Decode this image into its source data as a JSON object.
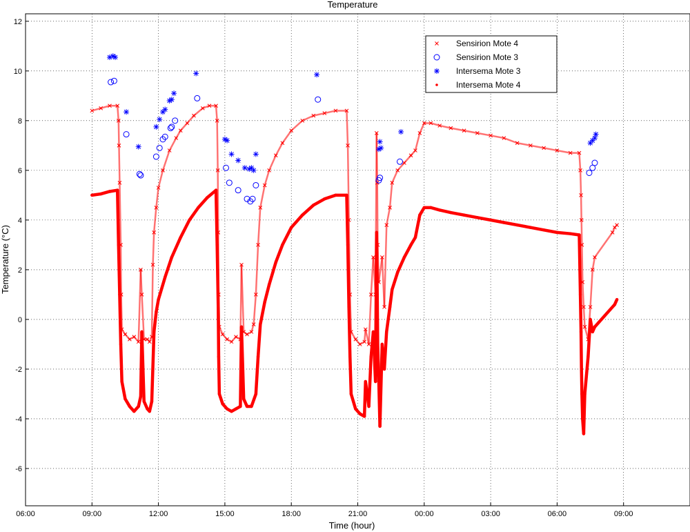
{
  "chart_data": {
    "type": "scatter",
    "title": "Temperature",
    "xlabel": "Time (hour)",
    "ylabel": "Temperature (°C)",
    "xlim": [
      6,
      36
    ],
    "ylim": [
      -7.5,
      12.3
    ],
    "x_unit": "hour",
    "x_ticks": [
      {
        "x": 6,
        "label": "06:00"
      },
      {
        "x": 9,
        "label": "09:00"
      },
      {
        "x": 12,
        "label": "12:00"
      },
      {
        "x": 15,
        "label": "15:00"
      },
      {
        "x": 18,
        "label": "18:00"
      },
      {
        "x": 21,
        "label": "21:00"
      },
      {
        "x": 24,
        "label": "00:00"
      },
      {
        "x": 27,
        "label": "03:00"
      },
      {
        "x": 30,
        "label": "06:00"
      },
      {
        "x": 33,
        "label": "09:00"
      }
    ],
    "y_ticks": [
      {
        "y": 12,
        "label": "12"
      },
      {
        "y": 10,
        "label": "10"
      },
      {
        "y": 8,
        "label": "8"
      },
      {
        "y": 6,
        "label": "6"
      },
      {
        "y": 4,
        "label": "4"
      },
      {
        "y": 2,
        "label": "2"
      },
      {
        "y": 0,
        "label": "0"
      },
      {
        "y": -2,
        "label": "-2"
      },
      {
        "y": -4,
        "label": "-4"
      },
      {
        "y": -6,
        "label": "-6"
      }
    ],
    "grid": true,
    "legend_position": "top-right",
    "series": [
      {
        "name": "Sensirion Mote 4",
        "marker": "x",
        "color": "#ff0000",
        "points": [
          [
            9.0,
            8.4
          ],
          [
            9.4,
            8.5
          ],
          [
            9.8,
            8.6
          ],
          [
            10.15,
            8.6
          ],
          [
            10.2,
            8.0
          ],
          [
            10.22,
            7.0
          ],
          [
            10.25,
            5.5
          ],
          [
            10.3,
            3.0
          ],
          [
            10.32,
            1.0
          ],
          [
            10.35,
            -0.4
          ],
          [
            10.5,
            -0.6
          ],
          [
            10.7,
            -0.8
          ],
          [
            10.9,
            -0.7
          ],
          [
            11.1,
            -0.9
          ],
          [
            11.2,
            2.0
          ],
          [
            11.25,
            1.0
          ],
          [
            11.35,
            -0.8
          ],
          [
            11.5,
            -0.8
          ],
          [
            11.6,
            -0.9
          ],
          [
            11.7,
            -0.7
          ],
          [
            11.75,
            2.2
          ],
          [
            11.8,
            3.5
          ],
          [
            11.9,
            4.5
          ],
          [
            12.0,
            5.3
          ],
          [
            12.2,
            6.0
          ],
          [
            12.5,
            6.8
          ],
          [
            12.8,
            7.3
          ],
          [
            13.0,
            7.6
          ],
          [
            13.3,
            7.9
          ],
          [
            13.6,
            8.2
          ],
          [
            14.0,
            8.5
          ],
          [
            14.3,
            8.6
          ],
          [
            14.6,
            8.6
          ],
          [
            14.65,
            8.0
          ],
          [
            14.68,
            6.0
          ],
          [
            14.7,
            3.5
          ],
          [
            14.72,
            1.0
          ],
          [
            14.75,
            -0.3
          ],
          [
            14.9,
            -0.6
          ],
          [
            15.1,
            -0.8
          ],
          [
            15.3,
            -0.9
          ],
          [
            15.5,
            -0.7
          ],
          [
            15.7,
            -0.8
          ],
          [
            15.75,
            2.2
          ],
          [
            15.85,
            -0.5
          ],
          [
            16.0,
            -0.6
          ],
          [
            16.2,
            -0.5
          ],
          [
            16.3,
            -0.2
          ],
          [
            16.4,
            1.0
          ],
          [
            16.5,
            3.0
          ],
          [
            16.6,
            4.5
          ],
          [
            16.8,
            5.4
          ],
          [
            17.0,
            6.0
          ],
          [
            17.3,
            6.6
          ],
          [
            17.6,
            7.1
          ],
          [
            18.0,
            7.6
          ],
          [
            18.5,
            8.0
          ],
          [
            19.0,
            8.2
          ],
          [
            19.5,
            8.3
          ],
          [
            20.0,
            8.4
          ],
          [
            20.5,
            8.4
          ],
          [
            20.55,
            7.0
          ],
          [
            20.6,
            4.0
          ],
          [
            20.65,
            1.0
          ],
          [
            20.7,
            -0.5
          ],
          [
            20.9,
            -0.8
          ],
          [
            21.1,
            -1.0
          ],
          [
            21.3,
            -0.9
          ],
          [
            21.35,
            -0.4
          ],
          [
            21.5,
            -1.0
          ],
          [
            21.6,
            1.0
          ],
          [
            21.7,
            2.5
          ],
          [
            21.8,
            1.0
          ],
          [
            21.85,
            7.5
          ],
          [
            21.88,
            5.5
          ],
          [
            21.9,
            3.0
          ],
          [
            21.95,
            1.5
          ],
          [
            22.1,
            2.5
          ],
          [
            22.2,
            0.5
          ],
          [
            22.3,
            3.8
          ],
          [
            22.45,
            4.5
          ],
          [
            22.55,
            5.5
          ],
          [
            22.8,
            6.0
          ],
          [
            23.1,
            6.3
          ],
          [
            23.4,
            6.6
          ],
          [
            23.6,
            6.8
          ],
          [
            23.8,
            7.5
          ],
          [
            24.0,
            7.9
          ],
          [
            24.3,
            7.9
          ],
          [
            24.7,
            7.8
          ],
          [
            25.2,
            7.7
          ],
          [
            25.8,
            7.6
          ],
          [
            26.4,
            7.5
          ],
          [
            27.0,
            7.4
          ],
          [
            27.6,
            7.3
          ],
          [
            28.2,
            7.1
          ],
          [
            28.8,
            7.0
          ],
          [
            29.4,
            6.9
          ],
          [
            30.0,
            6.8
          ],
          [
            30.6,
            6.7
          ],
          [
            31.0,
            6.7
          ],
          [
            31.05,
            6.0
          ],
          [
            31.08,
            5.0
          ],
          [
            31.1,
            4.0
          ],
          [
            31.12,
            3.0
          ],
          [
            31.15,
            1.5
          ],
          [
            31.2,
            0.5
          ],
          [
            31.25,
            -0.3
          ],
          [
            31.4,
            -0.8
          ],
          [
            31.5,
            0.5
          ],
          [
            31.6,
            2.0
          ],
          [
            31.7,
            2.5
          ],
          [
            32.5,
            3.5
          ],
          [
            32.6,
            3.7
          ],
          [
            32.7,
            3.8
          ]
        ]
      },
      {
        "name": "Sensirion Mote 3",
        "marker": "o",
        "color": "#0000ff",
        "points": [
          [
            9.85,
            9.55
          ],
          [
            10.0,
            9.6
          ],
          [
            10.55,
            7.45
          ],
          [
            11.15,
            5.85
          ],
          [
            11.2,
            5.8
          ],
          [
            11.9,
            6.55
          ],
          [
            12.05,
            6.9
          ],
          [
            12.2,
            7.25
          ],
          [
            12.3,
            7.35
          ],
          [
            12.55,
            7.7
          ],
          [
            12.6,
            7.75
          ],
          [
            12.75,
            8.0
          ],
          [
            13.75,
            8.9
          ],
          [
            15.05,
            6.1
          ],
          [
            15.2,
            5.5
          ],
          [
            15.6,
            5.2
          ],
          [
            16.0,
            4.85
          ],
          [
            16.15,
            4.75
          ],
          [
            16.25,
            4.85
          ],
          [
            16.4,
            5.4
          ],
          [
            19.2,
            8.85
          ],
          [
            21.95,
            5.6
          ],
          [
            22.0,
            5.7
          ],
          [
            22.9,
            6.35
          ],
          [
            31.45,
            5.9
          ],
          [
            31.6,
            6.1
          ],
          [
            31.7,
            6.3
          ]
        ]
      },
      {
        "name": "Intersema Mote 3",
        "marker": "*",
        "color": "#0000ff",
        "points": [
          [
            9.8,
            10.55
          ],
          [
            9.95,
            10.6
          ],
          [
            10.05,
            10.55
          ],
          [
            10.55,
            8.35
          ],
          [
            11.1,
            6.95
          ],
          [
            11.9,
            7.75
          ],
          [
            12.05,
            8.05
          ],
          [
            12.2,
            8.35
          ],
          [
            12.3,
            8.45
          ],
          [
            12.5,
            8.8
          ],
          [
            12.6,
            8.85
          ],
          [
            12.7,
            9.1
          ],
          [
            13.7,
            9.9
          ],
          [
            15.0,
            7.25
          ],
          [
            15.1,
            7.2
          ],
          [
            15.3,
            6.65
          ],
          [
            15.6,
            6.4
          ],
          [
            15.9,
            6.1
          ],
          [
            16.1,
            6.05
          ],
          [
            16.2,
            6.1
          ],
          [
            16.3,
            6.0
          ],
          [
            16.4,
            6.65
          ],
          [
            19.15,
            9.85
          ],
          [
            21.95,
            6.85
          ],
          [
            22.0,
            7.15
          ],
          [
            22.05,
            6.9
          ],
          [
            22.95,
            7.55
          ],
          [
            31.5,
            7.1
          ],
          [
            31.6,
            7.2
          ],
          [
            31.7,
            7.3
          ],
          [
            31.75,
            7.45
          ]
        ]
      },
      {
        "name": "Intersema Mote 4",
        "marker": ".",
        "color": "#ff0000",
        "points": [
          [
            9.0,
            5.0
          ],
          [
            9.4,
            5.05
          ],
          [
            9.8,
            5.15
          ],
          [
            10.15,
            5.2
          ],
          [
            10.2,
            3.0
          ],
          [
            10.25,
            1.0
          ],
          [
            10.3,
            -1.0
          ],
          [
            10.35,
            -2.5
          ],
          [
            10.5,
            -3.2
          ],
          [
            10.7,
            -3.5
          ],
          [
            10.9,
            -3.7
          ],
          [
            11.1,
            -3.5
          ],
          [
            11.2,
            -3.1
          ],
          [
            11.25,
            -0.5
          ],
          [
            11.35,
            -3.3
          ],
          [
            11.5,
            -3.6
          ],
          [
            11.6,
            -3.7
          ],
          [
            11.7,
            -3.3
          ],
          [
            11.8,
            -0.5
          ],
          [
            11.9,
            0.3
          ],
          [
            12.0,
            0.8
          ],
          [
            12.3,
            1.7
          ],
          [
            12.6,
            2.5
          ],
          [
            13.0,
            3.3
          ],
          [
            13.4,
            4.0
          ],
          [
            13.8,
            4.5
          ],
          [
            14.2,
            4.9
          ],
          [
            14.6,
            5.2
          ],
          [
            14.65,
            3.0
          ],
          [
            14.7,
            0.5
          ],
          [
            14.72,
            -1.5
          ],
          [
            14.75,
            -3.0
          ],
          [
            14.9,
            -3.4
          ],
          [
            15.1,
            -3.6
          ],
          [
            15.3,
            -3.7
          ],
          [
            15.5,
            -3.6
          ],
          [
            15.7,
            -3.5
          ],
          [
            15.75,
            -0.3
          ],
          [
            15.85,
            -3.2
          ],
          [
            16.0,
            -3.5
          ],
          [
            16.2,
            -3.5
          ],
          [
            16.4,
            -3.0
          ],
          [
            16.5,
            -1.5
          ],
          [
            16.6,
            -0.2
          ],
          [
            16.8,
            0.7
          ],
          [
            17.0,
            1.4
          ],
          [
            17.3,
            2.3
          ],
          [
            17.6,
            3.0
          ],
          [
            18.0,
            3.7
          ],
          [
            18.5,
            4.2
          ],
          [
            19.0,
            4.6
          ],
          [
            19.5,
            4.85
          ],
          [
            20.0,
            5.0
          ],
          [
            20.5,
            5.0
          ],
          [
            20.55,
            3.0
          ],
          [
            20.6,
            0.5
          ],
          [
            20.65,
            -1.5
          ],
          [
            20.7,
            -3.0
          ],
          [
            20.9,
            -3.6
          ],
          [
            21.1,
            -3.8
          ],
          [
            21.3,
            -3.9
          ],
          [
            21.35,
            -2.5
          ],
          [
            21.5,
            -3.5
          ],
          [
            21.6,
            -1.5
          ],
          [
            21.7,
            -0.5
          ],
          [
            21.8,
            -2.5
          ],
          [
            21.85,
            3.5
          ],
          [
            21.88,
            1.0
          ],
          [
            21.9,
            -1.0
          ],
          [
            21.95,
            -2.5
          ],
          [
            22.0,
            -4.3
          ],
          [
            22.1,
            -1.0
          ],
          [
            22.2,
            -2.0
          ],
          [
            22.3,
            -0.5
          ],
          [
            22.45,
            0.5
          ],
          [
            22.55,
            1.2
          ],
          [
            22.8,
            1.9
          ],
          [
            23.1,
            2.5
          ],
          [
            23.4,
            3.0
          ],
          [
            23.6,
            3.3
          ],
          [
            23.8,
            4.2
          ],
          [
            24.0,
            4.5
          ],
          [
            24.3,
            4.5
          ],
          [
            24.7,
            4.4
          ],
          [
            25.2,
            4.3
          ],
          [
            25.8,
            4.2
          ],
          [
            26.4,
            4.1
          ],
          [
            27.0,
            4.0
          ],
          [
            27.6,
            3.9
          ],
          [
            28.2,
            3.8
          ],
          [
            28.8,
            3.7
          ],
          [
            29.4,
            3.6
          ],
          [
            30.0,
            3.5
          ],
          [
            30.6,
            3.45
          ],
          [
            31.0,
            3.4
          ],
          [
            31.05,
            1.0
          ],
          [
            31.08,
            -0.5
          ],
          [
            31.1,
            -2.0
          ],
          [
            31.12,
            -3.0
          ],
          [
            31.15,
            -4.0
          ],
          [
            31.2,
            -4.6
          ],
          [
            31.25,
            -3.0
          ],
          [
            31.4,
            -1.5
          ],
          [
            31.5,
            0.0
          ],
          [
            31.6,
            -0.5
          ],
          [
            31.7,
            -0.3
          ],
          [
            32.6,
            0.6
          ],
          [
            32.7,
            0.8
          ]
        ]
      }
    ]
  }
}
